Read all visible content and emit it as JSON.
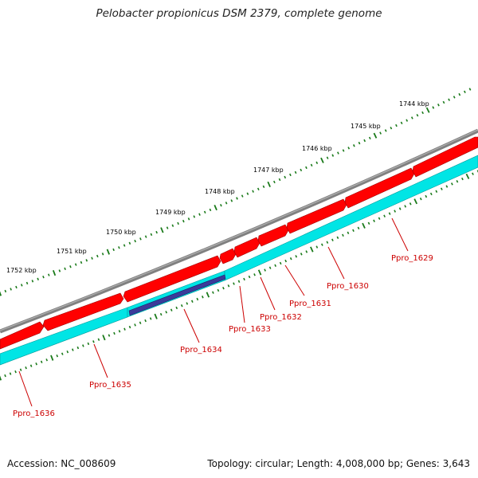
{
  "header": {
    "title": "Pelobacter propionicus DSM 2379, complete genome"
  },
  "footer": {
    "accession": "Accession: NC_008609",
    "summary": "Topology: circular; Length: 4,008,000 bp; Genes: 3,643"
  },
  "ruler": {
    "labels": [
      "1752 kbp",
      "1751 kbp",
      "1750 kbp",
      "1749 kbp",
      "1748 kbp",
      "1747 kbp",
      "1746 kbp",
      "1745 kbp",
      "1744 kbp"
    ],
    "color": "#1a7a1a"
  },
  "genes": [
    {
      "name": "Ppro_1636"
    },
    {
      "name": "Ppro_1635"
    },
    {
      "name": "Ppro_1634"
    },
    {
      "name": "Ppro_1633"
    },
    {
      "name": "Ppro_1632"
    },
    {
      "name": "Ppro_1631"
    },
    {
      "name": "Ppro_1630"
    },
    {
      "name": "Ppro_1629"
    }
  ],
  "colors": {
    "backbone": "#808080",
    "forward_genes": "#ff0000",
    "reverse_genes": "#00e5e5",
    "highlight_gene": "#3b3b9a",
    "gene_label": "#cc0000"
  }
}
